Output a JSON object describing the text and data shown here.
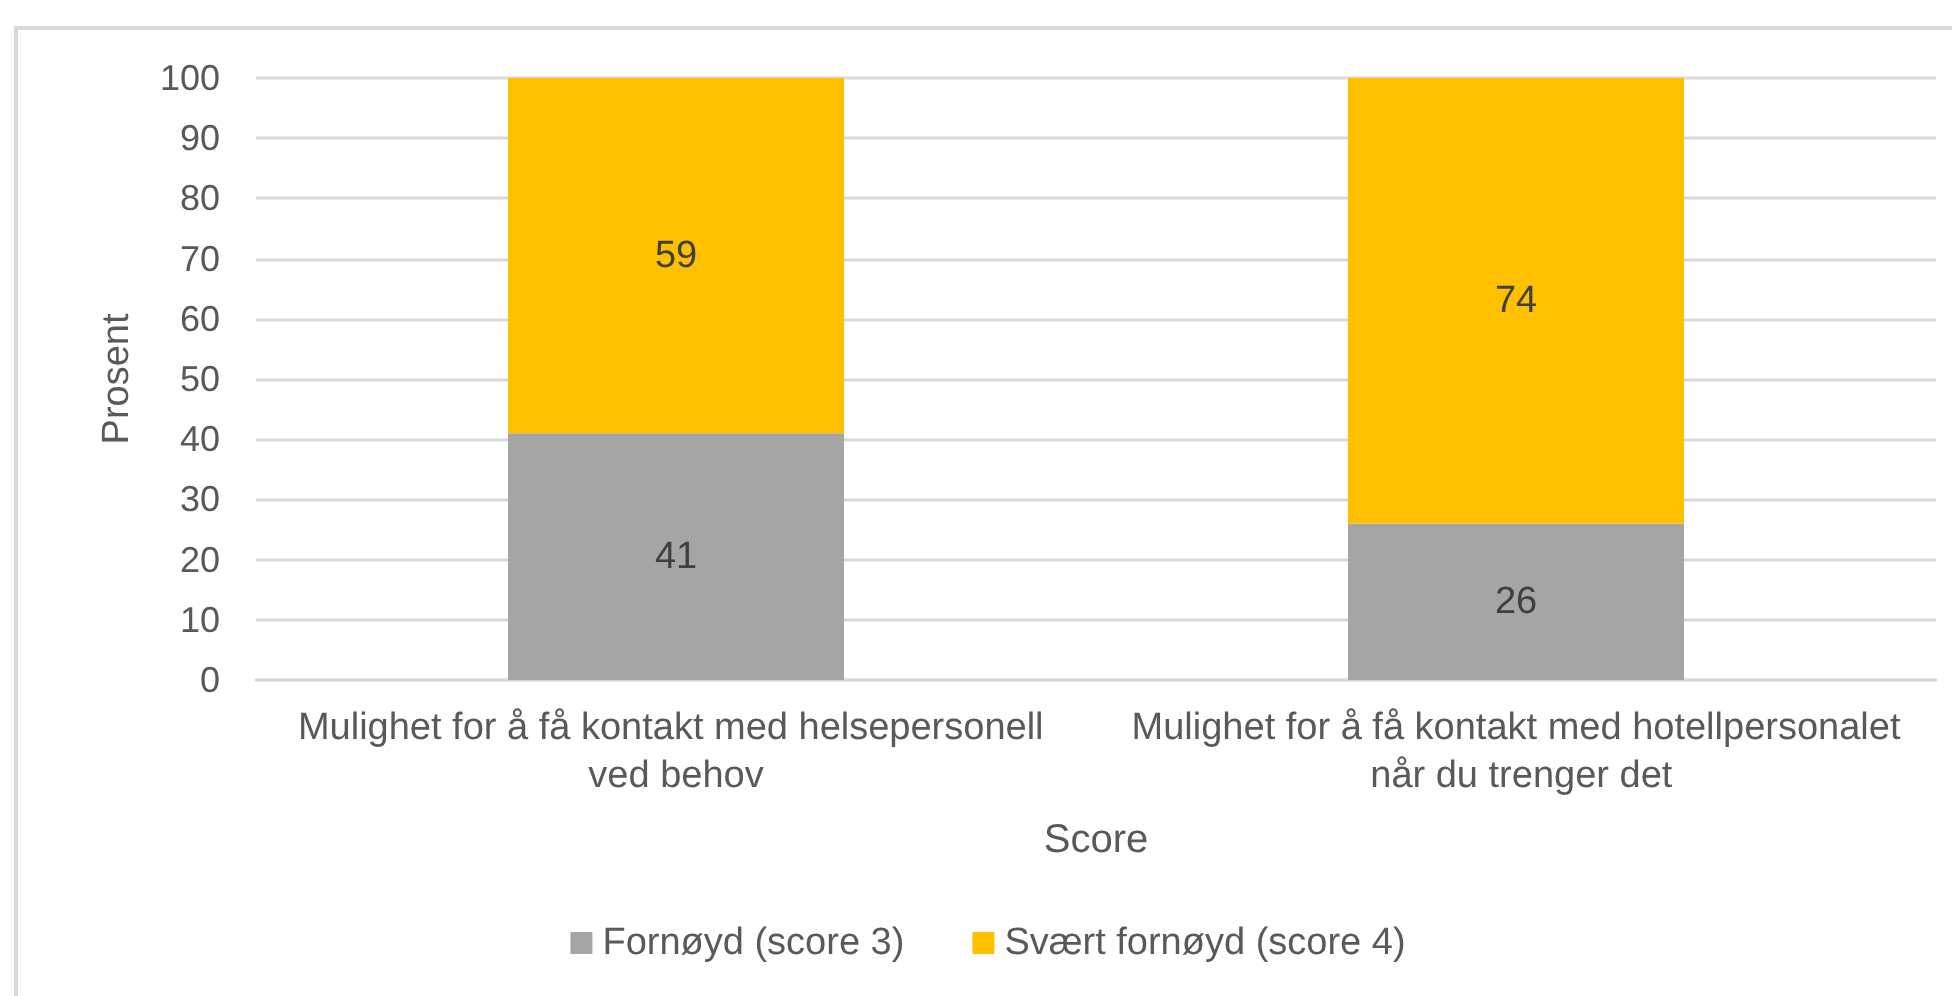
{
  "chart_data": {
    "type": "bar",
    "stacked": true,
    "categories": [
      "Mulighet for å få kontakt med helsepersonell ved behov",
      "Mulighet for å få kontakt med hotellpersonalet når du trenger det"
    ],
    "series": [
      {
        "name": "Fornøyd (score 3)",
        "color": "#a5a5a5",
        "values": [
          41,
          26
        ]
      },
      {
        "name": "Svært fornøyd (score 4)",
        "color": "#ffc000",
        "values": [
          59,
          74
        ]
      }
    ],
    "xlabel": "Score",
    "ylabel": "Prosent",
    "ylim": [
      0,
      100
    ],
    "yticks": [
      0,
      10,
      20,
      30,
      40,
      50,
      60,
      70,
      80,
      90,
      100
    ],
    "grid": "y",
    "legend": "bottom",
    "data_labels": true
  }
}
